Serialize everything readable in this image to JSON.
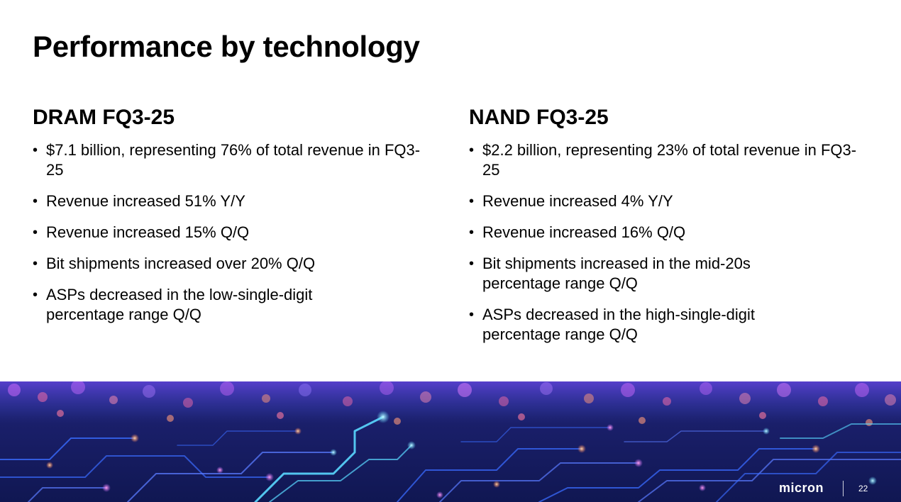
{
  "slide": {
    "title": "Performance by technology",
    "page_number": "22",
    "logo_text": "micron"
  },
  "columns": [
    {
      "heading": "DRAM FQ3-25",
      "bullets": [
        "$7.1 billion, representing 76% of total revenue in FQ3-25",
        "Revenue increased 51% Y/Y",
        "Revenue increased 15% Q/Q",
        "Bit shipments increased over 20% Q/Q",
        "ASPs decreased in the low-single-digit percentage range Q/Q"
      ]
    },
    {
      "heading": "NAND FQ3-25",
      "bullets": [
        "$2.2 billion, representing 23% of total revenue in FQ3-25",
        "Revenue increased 4% Y/Y",
        "Revenue increased 16% Q/Q",
        "Bit shipments increased in the mid-20s percentage range Q/Q",
        "ASPs decreased in the high-single-digit percentage range Q/Q"
      ]
    }
  ],
  "colors": {
    "text": "#000000",
    "background": "#ffffff",
    "banner_dark": "#101752",
    "banner_blue": "#3a6bff",
    "banner_cyan": "#5ad8ff",
    "banner_magenta": "#c86bff"
  }
}
